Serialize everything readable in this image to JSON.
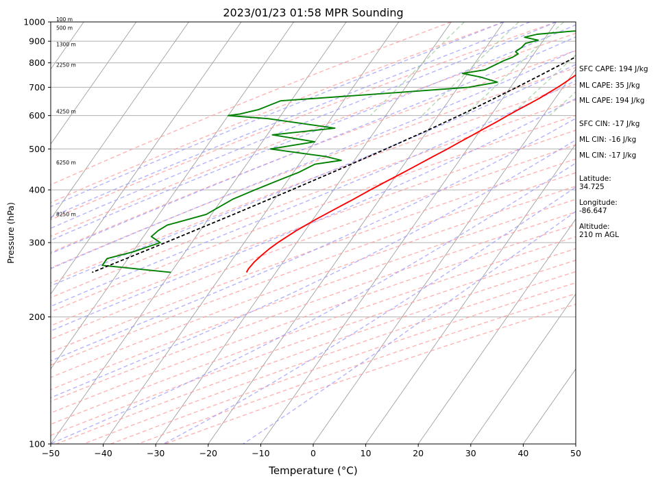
{
  "chart_data": {
    "type": "line",
    "title": "2023/01/23 01:58 MPR Sounding",
    "xlabel": "Temperature (°C)",
    "ylabel": "Pressure (hPa)",
    "xlim": [
      -50,
      50
    ],
    "ylim": [
      1000,
      100
    ],
    "y_scale": "log",
    "grid": true,
    "x_ticks": [
      "−50",
      "−40",
      "−30",
      "−20",
      "−10",
      "0",
      "10",
      "20",
      "30",
      "40",
      "50"
    ],
    "y_ticks": [
      "100",
      "200",
      "300",
      "400",
      "500",
      "600",
      "700",
      "800",
      "900",
      "1000"
    ],
    "series": [
      {
        "role": "temperature",
        "color": "#ff0000",
        "p": [
          968,
          975,
          980,
          975,
          965,
          950,
          935,
          920,
          905,
          890,
          875,
          860,
          845,
          830,
          820,
          800,
          780,
          760,
          740,
          720,
          700,
          680,
          660,
          640,
          620,
          600,
          580,
          560,
          540,
          520,
          500,
          480,
          460,
          440,
          420,
          400,
          380,
          360,
          340,
          320,
          300,
          290,
          280,
          270,
          260,
          255
        ],
        "T": [
          6.5,
          7.8,
          9.6,
          9.8,
          9.5,
          8.8,
          7.6,
          6.5,
          5.5,
          4.8,
          4.2,
          3.8,
          3.5,
          3.3,
          2.8,
          2.2,
          1.8,
          1.2,
          0.5,
          -0.2,
          -1.0,
          -2.0,
          -3.0,
          -4.2,
          -5.5,
          -6.8,
          -8.0,
          -9.4,
          -10.8,
          -12.3,
          -13.8,
          -15.5,
          -17.2,
          -19.0,
          -21.0,
          -23.0,
          -25.0,
          -27.2,
          -29.5,
          -31.7,
          -33.6,
          -34.4,
          -35.0,
          -35.5,
          -35.7,
          -35.6
        ]
      },
      {
        "role": "dewpoint",
        "color": "#008000",
        "p": [
          975,
          965,
          950,
          935,
          920,
          905,
          890,
          870,
          860,
          850,
          840,
          825,
          810,
          790,
          770,
          755,
          740,
          720,
          700,
          680,
          650,
          620,
          605,
          600,
          590,
          560,
          540,
          520,
          500,
          480,
          470,
          460,
          440,
          420,
          400,
          380,
          350,
          330,
          320,
          310,
          300,
          285,
          275,
          265,
          255
        ],
        "T": [
          6.0,
          1.0,
          -6.0,
          -12.0,
          -14.0,
          -11.0,
          -13.0,
          -13.2,
          -13.5,
          -13.8,
          -13.0,
          -13.6,
          -14.8,
          -16.0,
          -17.2,
          -21.0,
          -17.0,
          -13.2,
          -18.0,
          -31.0,
          -52.0,
          -55.0,
          -58.0,
          -60.0,
          -52.0,
          -38.0,
          -49.0,
          -40.0,
          -47.5,
          -36.0,
          -32.5,
          -37.0,
          -39.0,
          -42.0,
          -45.0,
          -48.0,
          -51.0,
          -57.0,
          -58.0,
          -58.5,
          -56.0,
          -60.0,
          -64.0,
          -64.0,
          -50.0
        ]
      },
      {
        "role": "parcel profile",
        "color": "#000000",
        "style": "dashed",
        "p": [
          975,
          950,
          925,
          900,
          875,
          850,
          825,
          800,
          775,
          750,
          725,
          700,
          650,
          600,
          550,
          500,
          450,
          400,
          350,
          300,
          255
        ],
        "T": [
          7.3,
          5.5,
          3.6,
          1.9,
          0.6,
          -0.5,
          -1.7,
          -3.0,
          -4.4,
          -5.8,
          -7.3,
          -8.8,
          -12.2,
          -16.0,
          -20.4,
          -25.5,
          -31.3,
          -38.0,
          -45.8,
          -55.0,
          -65.0
        ]
      }
    ],
    "height_labels": [
      "100 m",
      "500 m",
      "1300 m",
      "2250 m",
      "4250 m",
      "6250 m",
      "8250 m"
    ],
    "height_label_pressures": [
      1000,
      955,
      872,
      780,
      605,
      458,
      345
    ],
    "background_lines": {
      "isotherms_color": "#a0a0a0",
      "dry_adiabats_color": "#ff9999",
      "moist_adiabats_color": "#9999ff",
      "mixing_ratio_color": "#99cc99"
    }
  },
  "side_panel": {
    "sfc_cape": "SFC CAPE: 194 J/kg",
    "ml_cape": "ML CAPE: 35 J/kg",
    "mu_cape": "ML CAPE: 194 J/kg",
    "sfc_cin": "SFC CIN: -17 J/kg",
    "ml_cin": "ML CIN: -16 J/kg",
    "mu_cin": "ML CIN: -17 J/kg",
    "latitude": "Latitude:\n34.725",
    "longitude": "Longitude:\n-86.647",
    "altitude": "Altitude:\n210 m AGL"
  }
}
